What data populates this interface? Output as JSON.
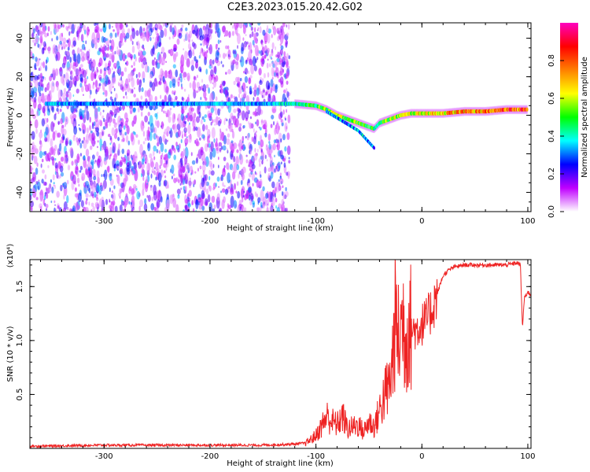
{
  "title": "C2E3.2023.015.20.42.G02",
  "chart_data": [
    {
      "type": "heatmap",
      "xlabel": "Height of straight line (km)",
      "ylabel": "Frequency (Hz)",
      "xlim": [
        -370,
        103
      ],
      "ylim": [
        -50,
        48
      ],
      "x_ticks": [
        -300,
        -200,
        -100,
        0,
        100
      ],
      "x_tick_labels": [
        "-300",
        "-200",
        "-100",
        "0",
        "100"
      ],
      "y_ticks": [
        -40,
        -20,
        0,
        20,
        40
      ],
      "y_tick_labels": [
        "-40",
        "-20",
        "0",
        "20",
        "40"
      ],
      "colorbar": {
        "label": "Normalized spectral amplitude",
        "range": [
          0,
          1
        ],
        "ticks": [
          0.0,
          0.2,
          0.4,
          0.6,
          0.8
        ],
        "tick_labels": [
          "0.0",
          "0.2",
          "0.4",
          "0.6",
          "0.8"
        ],
        "colors": [
          "#ffffff",
          "#c000ff",
          "#0000ff",
          "#00ffff",
          "#00ff00",
          "#ffff00",
          "#ff8000",
          "#ff0000",
          "#ff00c0"
        ]
      },
      "ridge": {
        "x": [
          -355,
          -300,
          -250,
          -200,
          -150,
          -120,
          -100,
          -90,
          -80,
          -70,
          -60,
          -50,
          -45,
          -40,
          -30,
          -20,
          -10,
          0,
          20,
          40,
          60,
          80,
          100
        ],
        "frequency": [
          6,
          6,
          6,
          6,
          6,
          6,
          5,
          3,
          0,
          -2,
          -4,
          -6,
          -7,
          -4,
          -2,
          0,
          1,
          1,
          1,
          2,
          2,
          3,
          3
        ],
        "amplitude": [
          0.35,
          0.3,
          0.3,
          0.35,
          0.35,
          0.4,
          0.5,
          0.55,
          0.6,
          0.55,
          0.55,
          0.5,
          0.45,
          0.5,
          0.55,
          0.6,
          0.6,
          0.65,
          0.7,
          0.75,
          0.75,
          0.8,
          0.8
        ]
      },
      "branch": {
        "x": [
          -90,
          -75,
          -60,
          -50,
          -45
        ],
        "frequency": [
          2,
          -3,
          -8,
          -14,
          -17
        ]
      },
      "noise_region": {
        "x_range": [
          -370,
          -125
        ],
        "frequency_range": [
          -50,
          48
        ]
      },
      "grid": false
    },
    {
      "type": "line",
      "xlabel": "Height of straight line (km)",
      "ylabel": "SNR (10 * v/v)",
      "y_multiplier": "(x10⁴)",
      "xlim": [
        -370,
        103
      ],
      "ylim": [
        0,
        1.75
      ],
      "x_ticks": [
        -300,
        -200,
        -100,
        0,
        100
      ],
      "x_tick_labels": [
        "-300",
        "-200",
        "-100",
        "0",
        "100"
      ],
      "y_ticks": [
        0.5,
        1.0,
        1.5
      ],
      "y_tick_labels": [
        "0.5",
        "1.0",
        "1.5"
      ],
      "color": "#ee2222",
      "series": [
        {
          "x": [
            -370,
            -300,
            -250,
            -200,
            -150,
            -120,
            -110,
            -105,
            -100,
            -95,
            -90,
            -85,
            -80,
            -75,
            -70,
            -65,
            -60,
            -55,
            -50,
            -45,
            -40,
            -35,
            -30,
            -27,
            -25,
            -22,
            -20,
            -18,
            -15,
            -12,
            -10,
            -5,
            0,
            5,
            10,
            15,
            20,
            25,
            30,
            40,
            50,
            60,
            70,
            80,
            90,
            93,
            95,
            96,
            97,
            100,
            103
          ],
          "y": [
            0.02,
            0.03,
            0.03,
            0.03,
            0.03,
            0.04,
            0.05,
            0.08,
            0.12,
            0.2,
            0.3,
            0.25,
            0.22,
            0.3,
            0.18,
            0.2,
            0.22,
            0.15,
            0.25,
            0.2,
            0.35,
            0.5,
            0.6,
            0.9,
            1.2,
            1.0,
            1.1,
            1.2,
            1.0,
            1.2,
            1.1,
            1.1,
            1.15,
            1.2,
            1.3,
            1.45,
            1.6,
            1.65,
            1.68,
            1.7,
            1.7,
            1.7,
            1.7,
            1.7,
            1.72,
            1.7,
            1.1,
            1.3,
            1.4,
            1.45,
            1.42
          ]
        }
      ],
      "grid": false
    }
  ]
}
